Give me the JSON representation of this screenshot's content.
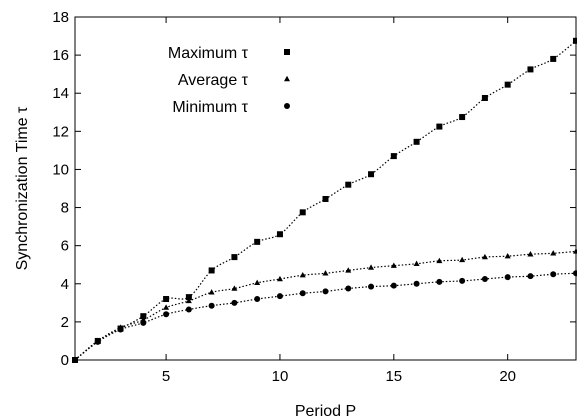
{
  "chart_data": {
    "type": "scatter",
    "title": "",
    "xlabel": "Period P",
    "ylabel": "Synchronization Time τ",
    "xlim": [
      1,
      23
    ],
    "ylim": [
      0,
      18
    ],
    "xticks": [
      5,
      10,
      15,
      20
    ],
    "yticks": [
      0,
      2,
      4,
      6,
      8,
      10,
      12,
      14,
      16,
      18
    ],
    "grid": false,
    "legend_position": "top-left",
    "series": [
      {
        "name": "Maximum τ",
        "marker": "square",
        "x": [
          1,
          2,
          3,
          4,
          5,
          6,
          7,
          8,
          9,
          10,
          11,
          12,
          13,
          14,
          15,
          16,
          17,
          18,
          19,
          20,
          21,
          22,
          23
        ],
        "y": [
          0,
          1.0,
          1.65,
          2.3,
          3.2,
          3.3,
          4.7,
          5.4,
          6.2,
          6.6,
          7.75,
          8.45,
          9.2,
          9.75,
          10.7,
          11.45,
          12.25,
          12.75,
          13.75,
          14.45,
          15.25,
          15.8,
          16.75
        ]
      },
      {
        "name": "Average τ",
        "marker": "triangle",
        "x": [
          1,
          2,
          3,
          4,
          5,
          6,
          7,
          8,
          9,
          10,
          11,
          12,
          13,
          14,
          15,
          16,
          17,
          18,
          19,
          20,
          21,
          22,
          23
        ],
        "y": [
          0,
          1.0,
          1.7,
          2.1,
          2.75,
          3.1,
          3.55,
          3.75,
          4.05,
          4.25,
          4.45,
          4.55,
          4.7,
          4.85,
          4.95,
          5.05,
          5.2,
          5.25,
          5.4,
          5.45,
          5.55,
          5.6,
          5.7
        ]
      },
      {
        "name": "Minimum τ",
        "marker": "circle",
        "x": [
          1,
          2,
          3,
          4,
          5,
          6,
          7,
          8,
          9,
          10,
          11,
          12,
          13,
          14,
          15,
          16,
          17,
          18,
          19,
          20,
          21,
          22,
          23
        ],
        "y": [
          0,
          0.95,
          1.6,
          1.95,
          2.4,
          2.65,
          2.85,
          3.0,
          3.2,
          3.35,
          3.5,
          3.6,
          3.75,
          3.85,
          3.9,
          4.0,
          4.1,
          4.15,
          4.25,
          4.35,
          4.4,
          4.5,
          4.55
        ]
      }
    ]
  }
}
